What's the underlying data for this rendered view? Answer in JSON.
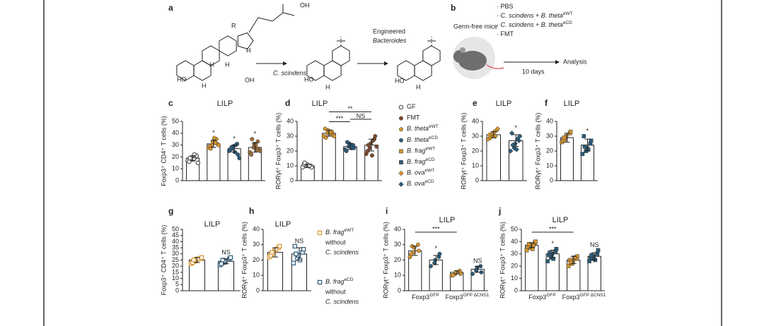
{
  "figure_a": {
    "labels": [
      "a",
      "OH",
      "R",
      "H",
      "H",
      "H",
      "HO",
      "H",
      "OH",
      "C. scindens",
      "HO",
      "H",
      "Engineered",
      "Bacteroides",
      "HO",
      "H"
    ]
  },
  "figure_b": {
    "letter": "b",
    "subject": "Germ-free mice",
    "groups": [
      {
        "text": "· PBS",
        "color": "#888888"
      },
      {
        "text": "· C. scindens + B. theta",
        "sup": "eWT",
        "color": "#d4952f"
      },
      {
        "text": "· C. scindens + B. theta",
        "sup": "eCD",
        "color": "#2b5b7a"
      },
      {
        "text": "· FMT",
        "color": "#7a4a2a"
      }
    ],
    "duration": "10 days",
    "endpoint": "Analysis"
  },
  "chart_data": [
    {
      "type": "bar",
      "panel": "c",
      "title": "LILP",
      "ylabel": "Foxp3⁺ CD4⁺ T cells (%)",
      "ylim": [
        0,
        50
      ],
      "yticks": [
        0,
        10,
        20,
        30,
        40,
        50
      ],
      "groups": [
        {
          "marker": "circle",
          "color": "#555555",
          "open": true,
          "value": 19,
          "error": 2,
          "points": [
            17,
            18,
            19,
            20,
            21,
            16,
            19,
            18,
            22,
            15
          ]
        },
        {
          "marker": "circle",
          "color": "#d4952f",
          "value": 31,
          "error": 3,
          "points": [
            28,
            30,
            33,
            35,
            31,
            29,
            27,
            36,
            32,
            30
          ]
        },
        {
          "marker": "circle",
          "color": "#2b5b7a",
          "value": 27,
          "error": 3,
          "points": [
            25,
            27,
            29,
            31,
            22,
            26,
            28,
            24,
            30,
            19
          ]
        },
        {
          "marker": "circle",
          "color": "#9c6b3a",
          "value": 28,
          "error": 4,
          "points": [
            24,
            28,
            31,
            33,
            27,
            22,
            35,
            30,
            26,
            25
          ]
        }
      ],
      "annotations": [
        {
          "group": 1,
          "text": "*"
        },
        {
          "group": 2,
          "text": "*"
        },
        {
          "group": 3,
          "text": "*"
        }
      ]
    },
    {
      "type": "bar",
      "panel": "d",
      "title": "LILP",
      "ylabel": "RORγt⁺ Foxp3⁺ T cells (%)",
      "ylim": [
        0,
        40
      ],
      "yticks": [
        0,
        10,
        20,
        30,
        40
      ],
      "groups": [
        {
          "marker": "circle",
          "color": "#555555",
          "open": true,
          "value": 10,
          "error": 1,
          "points": [
            9,
            10,
            11,
            10,
            9,
            11,
            12,
            10,
            10
          ]
        },
        {
          "marker": "circle",
          "color": "#d4952f",
          "value": 32,
          "error": 2,
          "points": [
            30,
            32,
            34,
            33,
            31,
            35,
            29,
            32,
            33,
            30
          ]
        },
        {
          "marker": "circle",
          "color": "#2b5b7a",
          "value": 23,
          "error": 2,
          "points": [
            21,
            23,
            25,
            24,
            22,
            20,
            26,
            23,
            22
          ]
        },
        {
          "marker": "circle",
          "color": "#7a4a2a",
          "value": 24,
          "error": 4,
          "points": [
            18,
            22,
            25,
            28,
            30,
            20,
            24,
            17,
            27,
            23
          ]
        }
      ],
      "brackets": [
        {
          "from": 1,
          "to": 2,
          "text": "***"
        },
        {
          "from": 2,
          "to": 3,
          "text": "NS"
        },
        {
          "from": 1,
          "to": 3,
          "text": "**"
        }
      ],
      "legend": [
        {
          "name": "GF",
          "marker": "circle",
          "color": "#555555",
          "open": true
        },
        {
          "name": "FMT",
          "marker": "circle",
          "color": "#7a4a2a"
        },
        {
          "name": "B. theta",
          "sup": "eWT",
          "marker": "circle",
          "color": "#d4952f"
        },
        {
          "name": "B. theta",
          "sup": "eCD",
          "marker": "circle",
          "color": "#2b5b7a"
        },
        {
          "name": "B. frag",
          "sup": "eWT",
          "marker": "square",
          "color": "#d4952f"
        },
        {
          "name": "B. frag",
          "sup": "eCD",
          "marker": "square",
          "color": "#2b5b7a"
        },
        {
          "name": "B. ova",
          "sup": "eWT",
          "marker": "diamond",
          "color": "#d4952f"
        },
        {
          "name": "B. ova",
          "sup": "eCD",
          "marker": "diamond",
          "color": "#2b5b7a"
        }
      ]
    },
    {
      "type": "bar",
      "panel": "e",
      "title": "LILP",
      "ylabel": "RORγt⁺ Foxp3⁺ T cells (%)",
      "ylim": [
        0,
        40
      ],
      "yticks": [
        0,
        10,
        20,
        30,
        40
      ],
      "groups": [
        {
          "marker": "diamond",
          "color": "#d4952f",
          "value": 31,
          "error": 2,
          "points": [
            28,
            30,
            32,
            34,
            35,
            31,
            29,
            33,
            30
          ]
        },
        {
          "marker": "diamond",
          "color": "#2b5b7a",
          "value": 27,
          "error": 4,
          "points": [
            20,
            22,
            25,
            27,
            30,
            32,
            24,
            21,
            28
          ]
        }
      ],
      "annotations": [
        {
          "group": 1,
          "text": "*"
        }
      ]
    },
    {
      "type": "bar",
      "panel": "f",
      "title": "LILP",
      "ylabel": "RORγt⁺ Foxp3⁺ T cells (%)",
      "ylim": [
        0,
        40
      ],
      "yticks": [
        0,
        10,
        20,
        30,
        40
      ],
      "groups": [
        {
          "marker": "square",
          "color": "#d4952f",
          "value": 29,
          "error": 3,
          "points": [
            26,
            28,
            30,
            32,
            33,
            27,
            29
          ]
        },
        {
          "marker": "square",
          "color": "#2b5b7a",
          "value": 24,
          "error": 4,
          "points": [
            18,
            20,
            22,
            25,
            27,
            30,
            23,
            21
          ]
        }
      ],
      "annotations": [
        {
          "group": 1,
          "text": "*"
        }
      ]
    },
    {
      "type": "bar",
      "panel": "g",
      "title": "LILP",
      "ylabel": "Foxp3⁺ CD4⁺ T cells (%)",
      "ylim": [
        0,
        50
      ],
      "yticks": [
        0,
        5,
        10,
        15,
        20,
        25,
        30,
        35,
        40,
        45,
        50
      ],
      "groups": [
        {
          "marker": "square",
          "color": "#d4952f",
          "open": true,
          "value": 25,
          "error": 2,
          "points": [
            22,
            24,
            25,
            26,
            27,
            23,
            25,
            26
          ]
        },
        {
          "marker": "square",
          "color": "#2b5b7a",
          "open": true,
          "value": 24,
          "error": 2,
          "points": [
            21,
            23,
            24,
            26,
            27,
            22,
            25
          ]
        }
      ],
      "annotations": [
        {
          "group": 1,
          "text": "NS"
        }
      ]
    },
    {
      "type": "bar",
      "panel": "h",
      "title": "LILP",
      "ylabel": "RORγt⁺ Foxp3⁺ T cells (%)",
      "ylim": [
        0,
        40
      ],
      "yticks": [
        0,
        10,
        20,
        30,
        40
      ],
      "groups": [
        {
          "marker": "square",
          "color": "#d4952f",
          "open": true,
          "value": 25,
          "error": 3,
          "points": [
            22,
            24,
            26,
            28,
            29,
            23,
            25,
            27
          ]
        },
        {
          "marker": "square",
          "color": "#2b5b7a",
          "open": true,
          "value": 24,
          "error": 4,
          "points": [
            18,
            21,
            23,
            25,
            27,
            29,
            24,
            20
          ]
        }
      ],
      "annotations": [
        {
          "group": 1,
          "text": "NS"
        }
      ],
      "legend": [
        {
          "name": "B. frag",
          "sup": "eWT",
          "extra": [
            "without",
            "C. scindens"
          ],
          "marker": "square",
          "color": "#d4952f",
          "open": true
        },
        {
          "name": "B. frag",
          "sup": "eCD",
          "extra": [
            "without",
            "C. scindens"
          ],
          "marker": "square",
          "color": "#2b5b7a",
          "open": true
        }
      ]
    },
    {
      "type": "bar",
      "panel": "i",
      "title": "LILP",
      "ylabel": "RORγt⁺ Foxp3⁺ T cells (%)",
      "ylim": [
        0,
        40
      ],
      "yticks": [
        0,
        10,
        20,
        30,
        40
      ],
      "groups": [
        {
          "marker": "circle",
          "color": "#d4952f",
          "value": 26,
          "error": 3,
          "points": [
            22,
            25,
            28,
            30,
            26,
            24,
            29
          ]
        },
        {
          "marker": "circle",
          "color": "#2b5b7a",
          "value": 20,
          "error": 3,
          "points": [
            16,
            18,
            20,
            22,
            24
          ]
        },
        {
          "marker": "circle",
          "color": "#d4952f",
          "value": 12,
          "error": 1,
          "points": [
            10,
            11,
            12,
            13,
            11,
            10
          ]
        },
        {
          "marker": "circle",
          "color": "#2b5b7a",
          "value": 14,
          "error": 2,
          "points": [
            11,
            13,
            15,
            16,
            12
          ]
        }
      ],
      "annotations": [
        {
          "group": 1,
          "text": "*"
        },
        {
          "group": 3,
          "text": "NS"
        }
      ],
      "brackets": [
        {
          "from": 0,
          "to": 2,
          "text": "***"
        }
      ],
      "xgroups": [
        {
          "text": "Foxp3",
          "sup": "GFP",
          "from": 0,
          "to": 1
        },
        {
          "text": "Foxp3",
          "sup": "GFP ΔCNS1",
          "from": 2,
          "to": 3
        }
      ]
    },
    {
      "type": "bar",
      "panel": "j",
      "title": "LILP",
      "ylabel": "RORγt⁺ Foxp3⁺ T cells (%)",
      "ylim": [
        0,
        50
      ],
      "yticks": [
        0,
        10,
        20,
        30,
        40,
        50
      ],
      "groups": [
        {
          "marker": "square",
          "color": "#d4952f",
          "value": 37,
          "error": 2,
          "points": [
            33,
            35,
            37,
            39,
            40,
            36,
            38,
            34,
            37
          ]
        },
        {
          "marker": "square",
          "color": "#2b5b7a",
          "value": 30,
          "error": 3,
          "points": [
            24,
            27,
            30,
            32,
            34,
            29,
            31,
            26
          ]
        },
        {
          "marker": "square",
          "color": "#d4952f",
          "value": 25,
          "error": 3,
          "points": [
            20,
            22,
            24,
            26,
            28,
            25,
            23,
            27
          ]
        },
        {
          "marker": "square",
          "color": "#2b5b7a",
          "value": 28,
          "error": 3,
          "points": [
            24,
            26,
            28,
            30,
            33,
            27,
            29,
            25
          ]
        }
      ],
      "annotations": [
        {
          "group": 1,
          "text": "*"
        },
        {
          "group": 3,
          "text": "NS"
        }
      ],
      "brackets": [
        {
          "from": 0,
          "to": 2,
          "text": "***"
        }
      ],
      "xgroups": [
        {
          "text": "Foxp3",
          "sup": "GFP",
          "from": 0,
          "to": 1
        },
        {
          "text": "Foxp3",
          "sup": "GFP ΔCNS1",
          "from": 2,
          "to": 3
        }
      ]
    }
  ]
}
